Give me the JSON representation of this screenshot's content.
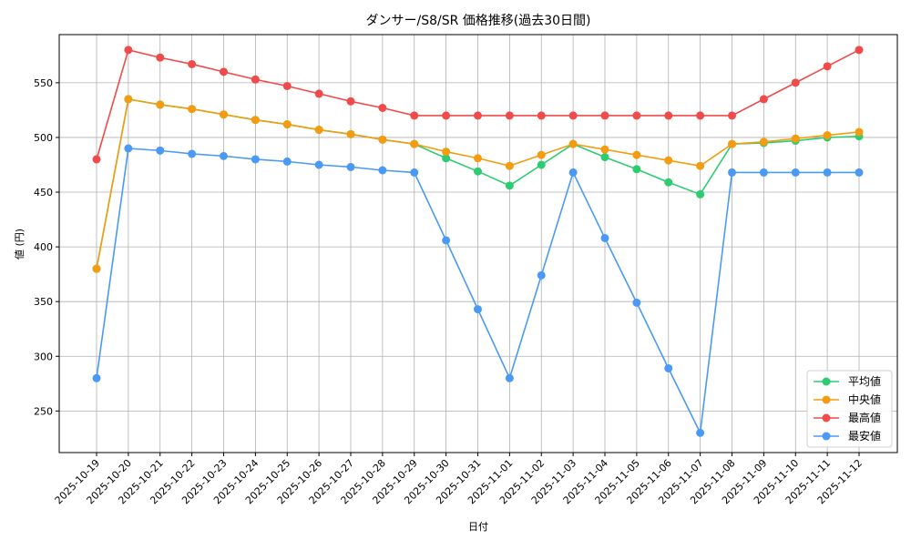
{
  "chart_data": {
    "type": "line",
    "title": "ダンサー/S8/SR 価格推移(過去30日間)",
    "xlabel": "日付",
    "ylabel": "値 (円)",
    "ylim": [
      212,
      594
    ],
    "yticks": [
      250,
      300,
      350,
      400,
      450,
      500,
      550
    ],
    "grid": true,
    "legend_position": "lower right",
    "categories": [
      "2025-10-19",
      "2025-10-20",
      "2025-10-21",
      "2025-10-22",
      "2025-10-23",
      "2025-10-24",
      "2025-10-25",
      "2025-10-26",
      "2025-10-27",
      "2025-10-28",
      "2025-10-29",
      "2025-10-30",
      "2025-10-31",
      "2025-11-01",
      "2025-11-02",
      "2025-11-03",
      "2025-11-04",
      "2025-11-05",
      "2025-11-06",
      "2025-11-07",
      "2025-11-08",
      "2025-11-09",
      "2025-11-10",
      "2025-11-11",
      "2025-11-12"
    ],
    "series": [
      {
        "name": "平均値",
        "color": "#2ecc71",
        "values": [
          380,
          535,
          530,
          526,
          521,
          516,
          512,
          507,
          503,
          498,
          494,
          481,
          469,
          456,
          475,
          494,
          482,
          471,
          459,
          448,
          494,
          495,
          497,
          500,
          501
        ]
      },
      {
        "name": "中央値",
        "color": "#f39c12",
        "values": [
          380,
          535,
          530,
          526,
          521,
          516,
          512,
          507,
          503,
          498,
          494,
          487,
          481,
          474,
          484,
          494,
          489,
          484,
          479,
          474,
          494,
          496,
          499,
          502,
          505
        ]
      },
      {
        "name": "最高値",
        "color": "#f04a4a",
        "values": [
          480,
          580,
          573,
          567,
          560,
          553,
          547,
          540,
          533,
          527,
          520,
          520,
          520,
          520,
          520,
          520,
          520,
          520,
          520,
          520,
          520,
          535,
          550,
          565,
          580
        ]
      },
      {
        "name": "最安値",
        "color": "#4a9af5",
        "values": [
          280,
          490,
          488,
          485,
          483,
          480,
          478,
          475,
          473,
          470,
          468,
          406,
          343,
          280,
          374,
          468,
          408,
          349,
          289,
          230,
          468,
          468,
          468,
          468,
          468
        ]
      }
    ]
  }
}
